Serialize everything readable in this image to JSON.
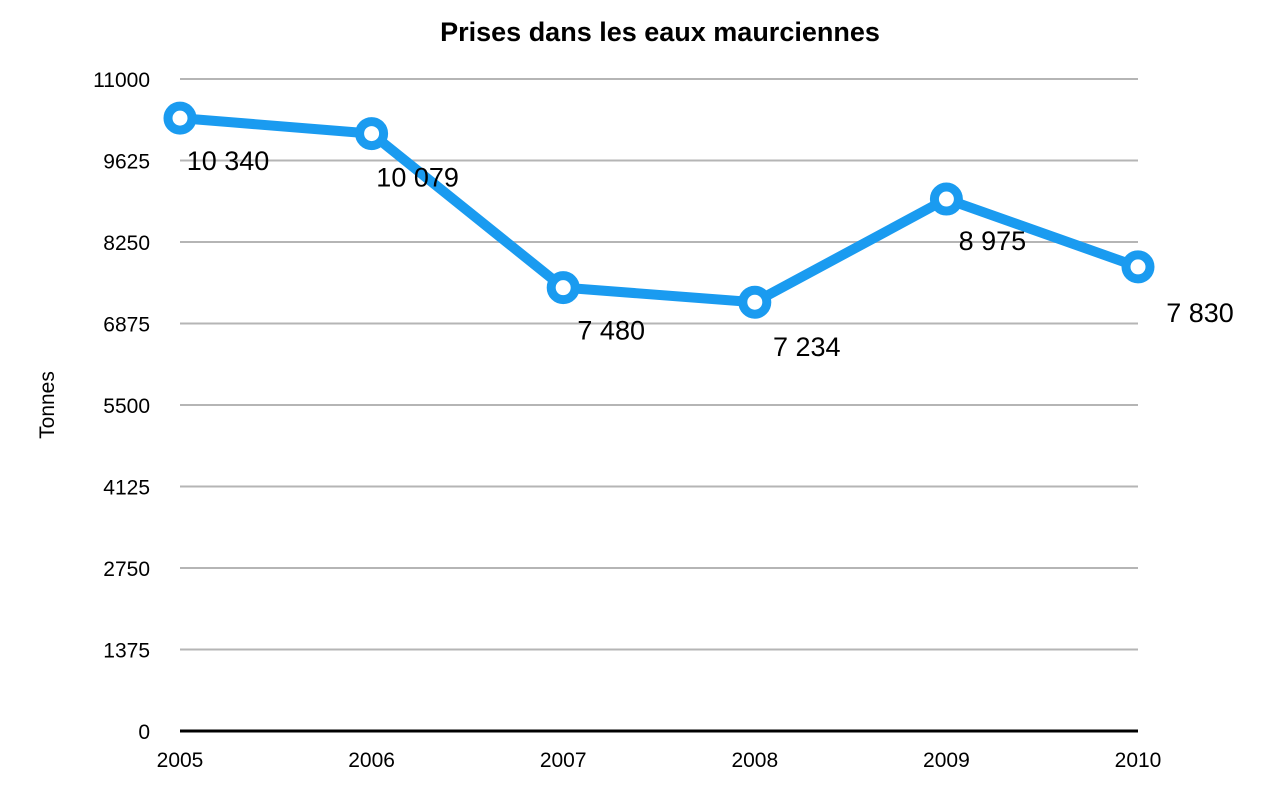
{
  "chart_data": {
    "type": "line",
    "title": "Prises dans les eaux maurciennes",
    "xlabel": "",
    "ylabel": "Tonnes",
    "categories": [
      "2005",
      "2006",
      "2007",
      "2008",
      "2009",
      "2010"
    ],
    "series": [
      {
        "name": "Prises",
        "values": [
          10340,
          10079,
          7480,
          7234,
          8975,
          7830
        ],
        "labels": [
          "10 340",
          "10 079",
          "7 480",
          "7 234",
          "8 975",
          "7 830"
        ],
        "color": "#1a9bf0"
      }
    ],
    "ylim": [
      0,
      11000
    ],
    "yticks": [
      0,
      1375,
      2750,
      4125,
      5500,
      6875,
      8250,
      9625,
      11000
    ],
    "grid": true,
    "legend": "none"
  }
}
